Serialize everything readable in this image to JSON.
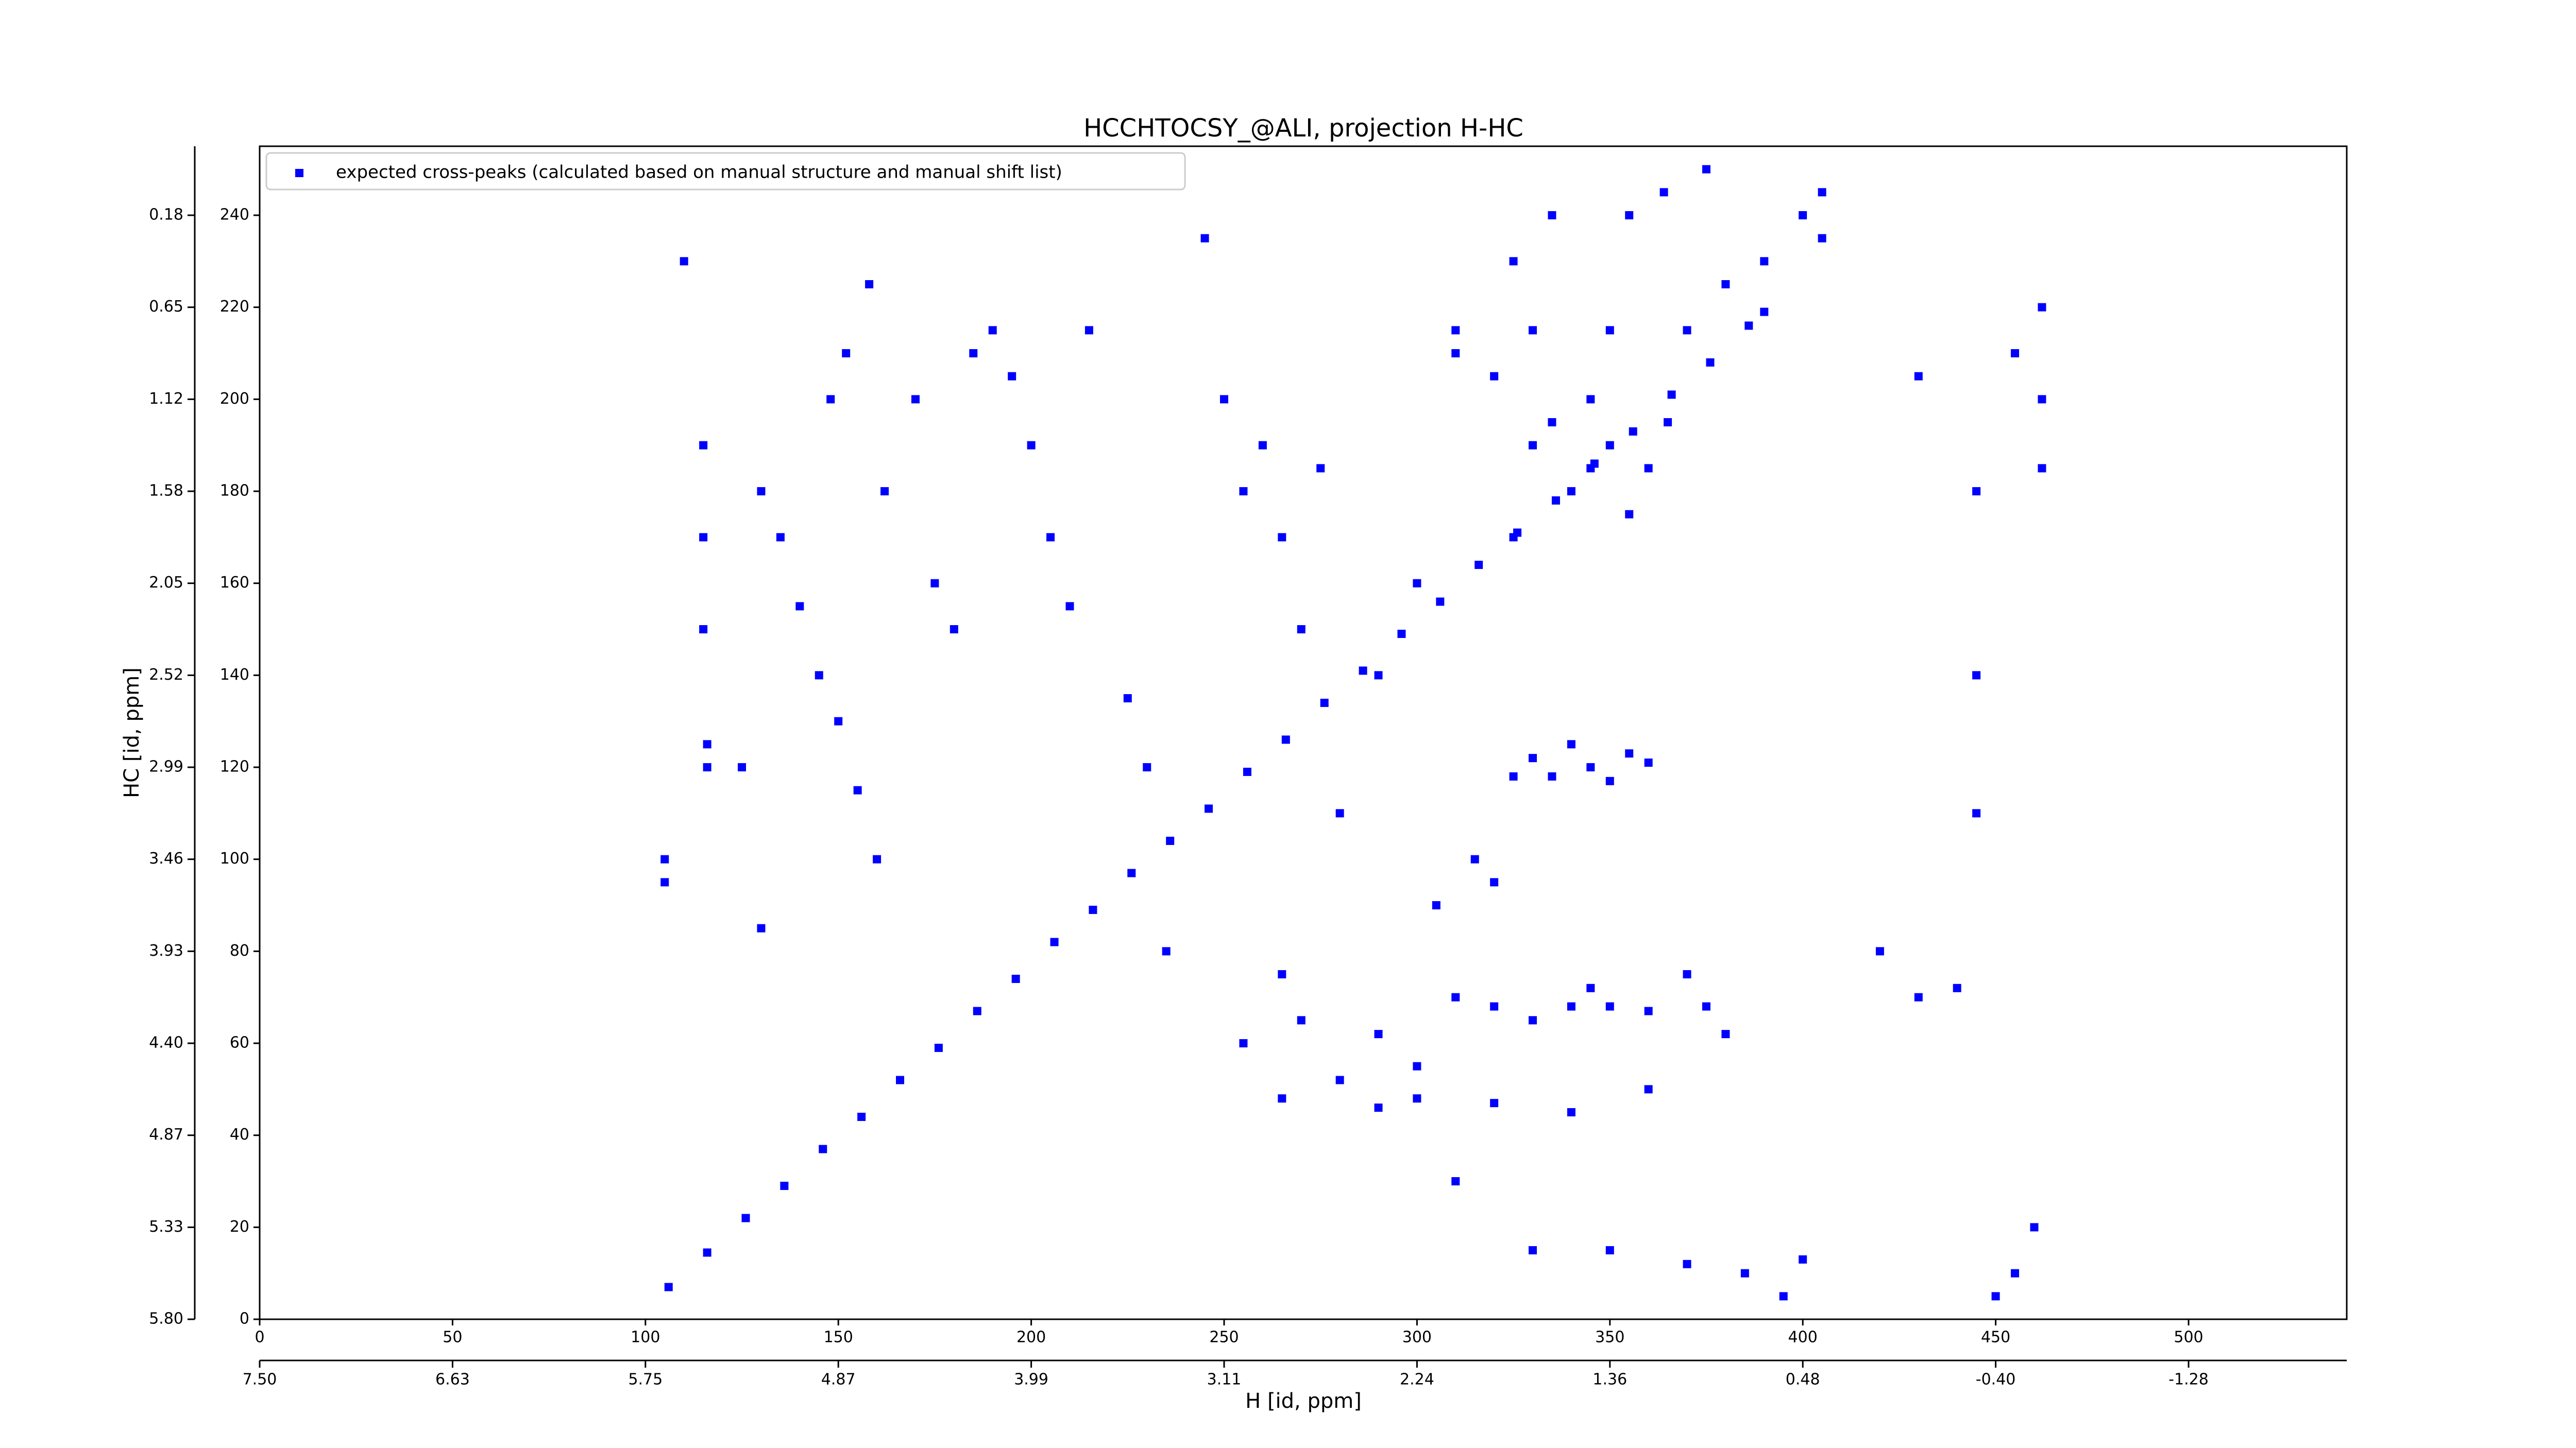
{
  "chart_data": {
    "type": "scatter",
    "title": "HCCHTOCSY_@ALI, projection H-HC",
    "x_label": "H [id, ppm]",
    "y_label": "HC [id, ppm]",
    "xlim": [
      0,
      541
    ],
    "ylim": [
      0,
      255
    ],
    "xticks": [
      0,
      50,
      100,
      150,
      200,
      250,
      300,
      350,
      400,
      450,
      500
    ],
    "yticks": [
      0,
      20,
      40,
      60,
      80,
      100,
      120,
      140,
      160,
      180,
      200,
      220,
      240
    ],
    "x2ticks": [
      {
        "value": 0,
        "label": "7.50"
      },
      {
        "value": 50,
        "label": "6.63"
      },
      {
        "value": 100,
        "label": "5.75"
      },
      {
        "value": 150,
        "label": "4.87"
      },
      {
        "value": 200,
        "label": "3.99"
      },
      {
        "value": 250,
        "label": "3.11"
      },
      {
        "value": 300,
        "label": "2.24"
      },
      {
        "value": 350,
        "label": "1.36"
      },
      {
        "value": 400,
        "label": "0.48"
      },
      {
        "value": 450,
        "label": "-0.40"
      },
      {
        "value": 500,
        "label": "-1.28"
      }
    ],
    "y2ticks": [
      {
        "value": 0,
        "label": "5.80"
      },
      {
        "value": 20,
        "label": "5.33"
      },
      {
        "value": 40,
        "label": "4.87"
      },
      {
        "value": 60,
        "label": "4.40"
      },
      {
        "value": 80,
        "label": "3.93"
      },
      {
        "value": 100,
        "label": "3.46"
      },
      {
        "value": 120,
        "label": "2.99"
      },
      {
        "value": 140,
        "label": "2.52"
      },
      {
        "value": 160,
        "label": "2.05"
      },
      {
        "value": 180,
        "label": "1.58"
      },
      {
        "value": 200,
        "label": "1.12"
      },
      {
        "value": 220,
        "label": "0.65"
      },
      {
        "value": 240,
        "label": "0.18"
      }
    ],
    "legend_position": "upper left",
    "x": [
      106,
      116,
      126,
      136,
      146,
      156,
      166,
      176,
      186,
      196,
      206,
      216,
      226,
      236,
      246,
      256,
      266,
      276,
      286,
      296,
      306,
      316,
      326,
      336,
      346,
      356,
      366,
      376,
      386,
      390,
      345,
      330,
      340,
      350,
      355,
      335,
      360,
      325,
      345,
      365,
      320,
      310,
      330,
      350,
      370,
      380,
      390,
      400,
      405,
      330,
      335,
      340,
      345,
      350,
      355,
      360,
      325,
      255,
      270,
      290,
      300,
      310,
      320,
      330,
      340,
      345,
      350,
      360,
      370,
      375,
      380,
      300,
      320,
      340,
      360,
      290,
      280,
      265,
      310,
      330,
      350,
      370,
      385,
      400,
      395,
      460,
      455,
      450,
      420,
      430,
      440,
      115,
      115,
      115,
      116,
      116,
      125,
      130,
      135,
      140,
      145,
      150,
      155,
      160,
      148,
      152,
      158,
      162,
      170,
      175,
      180,
      185,
      190,
      195,
      200,
      205,
      210,
      215,
      225,
      230,
      235,
      245,
      250,
      255,
      260,
      265,
      270,
      275,
      280,
      290,
      300,
      305,
      315,
      320,
      310,
      325,
      335,
      355,
      364,
      375,
      405,
      430,
      445,
      445,
      445,
      462,
      462,
      462,
      455,
      265,
      105,
      105,
      130,
      110
    ],
    "series": [
      {
        "name": "expected cross-peaks (calculated based on manual structure and manual shift list)",
        "color": "#0000ff",
        "values": [
          7,
          14.5,
          22,
          29,
          37,
          44,
          52,
          59,
          67,
          74,
          82,
          89,
          97,
          104,
          111,
          119,
          126,
          134,
          141,
          149,
          156,
          164,
          171,
          178,
          186,
          193,
          201,
          208,
          216,
          219,
          185,
          190,
          180,
          190,
          175,
          195,
          185,
          170,
          200,
          195,
          205,
          210,
          215,
          215,
          215,
          225,
          230,
          240,
          235,
          122,
          118,
          125,
          120,
          117,
          123,
          121,
          118,
          60,
          65,
          62,
          55,
          70,
          68,
          65,
          68,
          72,
          68,
          67,
          75,
          68,
          62,
          48,
          47,
          45,
          50,
          46,
          52,
          48,
          30,
          15,
          15,
          12,
          10,
          13,
          5,
          20,
          10,
          5,
          80,
          70,
          72,
          190,
          170,
          150,
          125,
          120,
          120,
          180,
          170,
          155,
          140,
          130,
          115,
          100,
          200,
          210,
          225,
          180,
          200,
          160,
          150,
          210,
          215,
          205,
          190,
          170,
          155,
          215,
          135,
          120,
          80,
          235,
          200,
          180,
          190,
          170,
          150,
          185,
          110,
          140,
          160,
          90,
          100,
          95,
          215,
          230,
          240,
          240,
          245,
          250,
          245,
          205,
          180,
          140,
          110,
          200,
          185,
          220,
          210,
          75,
          100,
          95,
          85,
          230
        ]
      }
    ]
  }
}
